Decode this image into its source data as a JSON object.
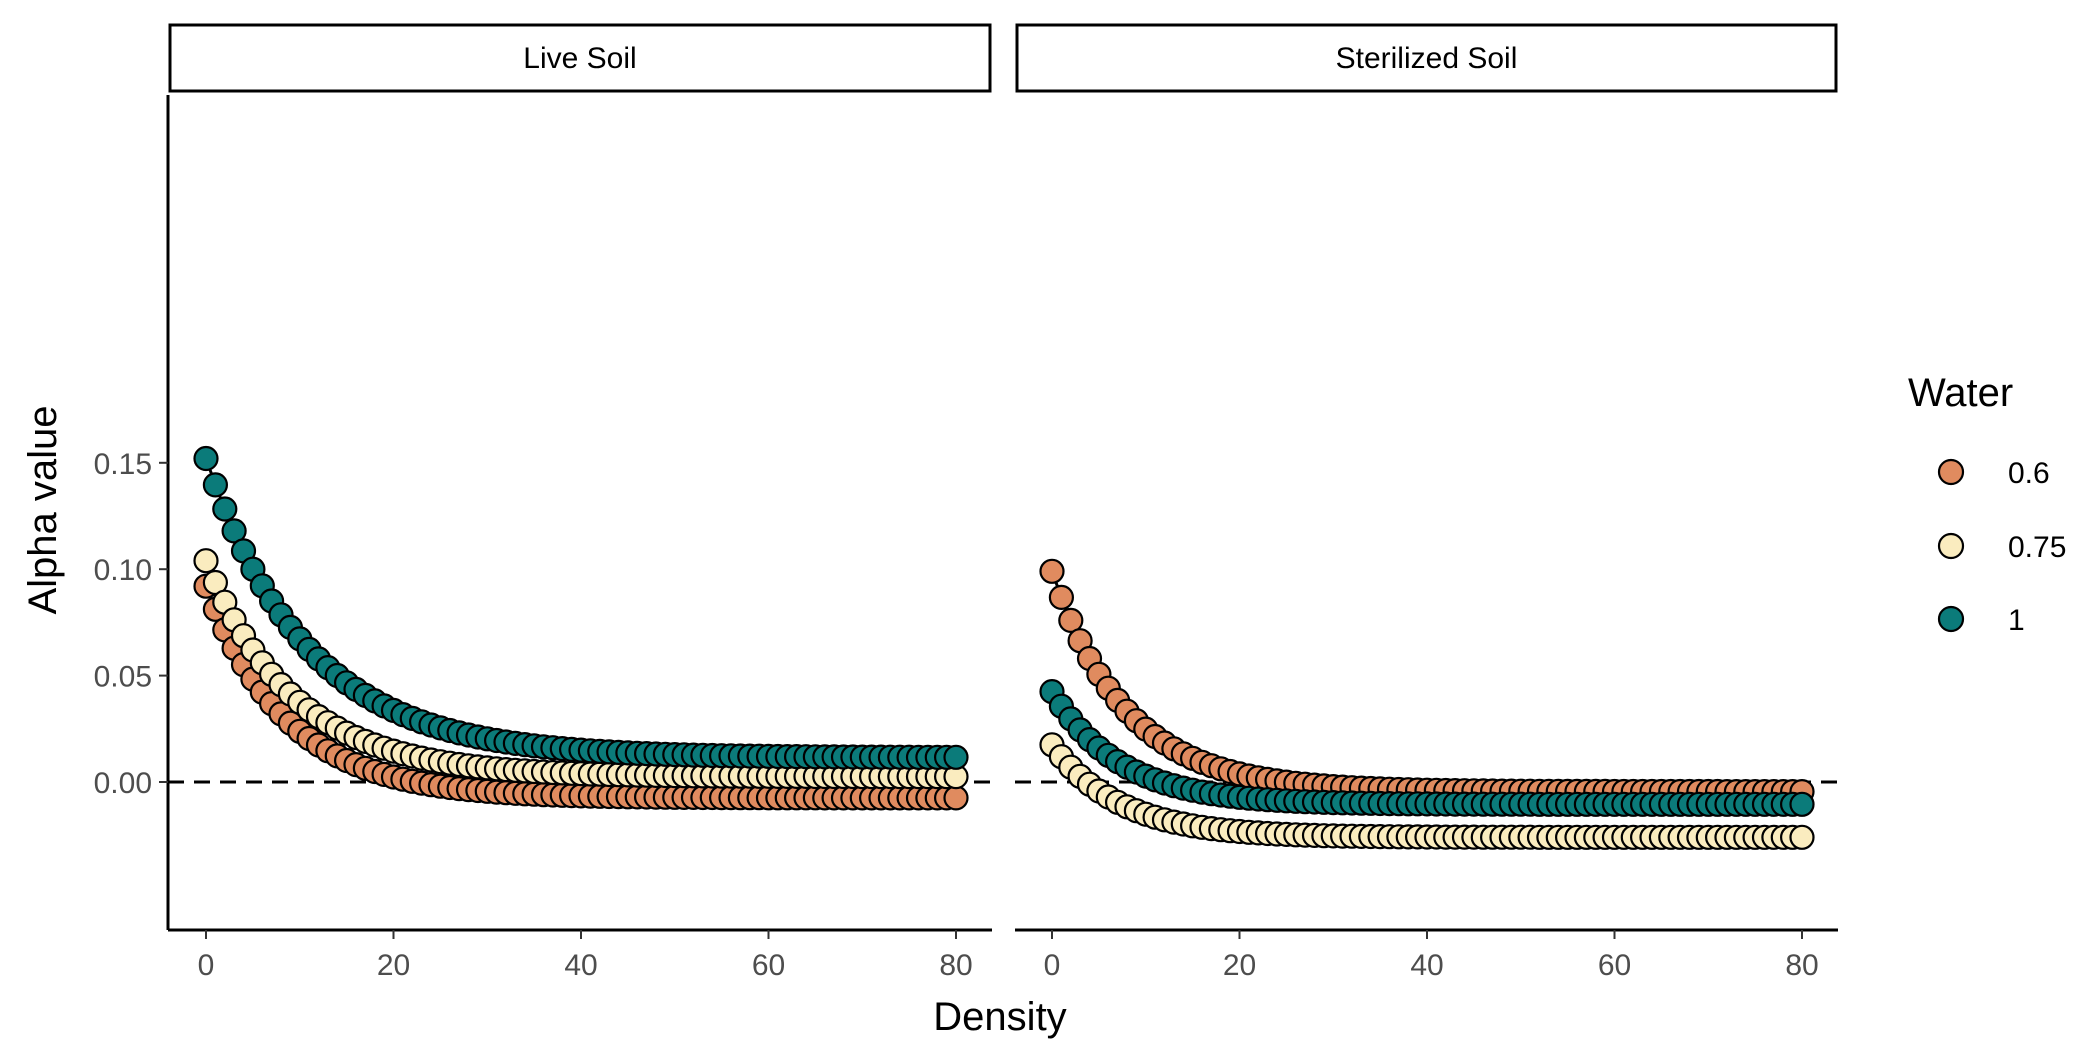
{
  "chart_data": {
    "type": "scatter",
    "xlabel": "Density",
    "ylabel": "Alpha value",
    "xlim": [
      -4,
      84
    ],
    "ylim": [
      -0.035,
      0.162
    ],
    "x_ticks": [
      0,
      20,
      40,
      60,
      80
    ],
    "y_ticks": [
      -0.05,
      0.0,
      0.05,
      0.1,
      0.15
    ],
    "y_tick_labels": [
      "",
      "0.00",
      "0.05",
      "0.10",
      "0.15"
    ],
    "reference_line": {
      "y": 0,
      "style": "dashed"
    },
    "grid": false,
    "legend": {
      "title": "Water",
      "placement": "right",
      "entries": [
        "0.6",
        "0.75",
        "1"
      ]
    },
    "colors": {
      "0.6": "#e08b5f",
      "0.75": "#faecbf",
      "1": "#0b7b7a"
    },
    "x_values": [
      0,
      1,
      2,
      3,
      4,
      5,
      6,
      7,
      8,
      9,
      10,
      11,
      12,
      13,
      14,
      15,
      16,
      17,
      18,
      19,
      20,
      21,
      22,
      23,
      24,
      25,
      26,
      27,
      28,
      29,
      30,
      31,
      32,
      33,
      34,
      35,
      36,
      37,
      38,
      39,
      40,
      41,
      42,
      43,
      44,
      45,
      46,
      47,
      48,
      49,
      50,
      51,
      52,
      53,
      54,
      55,
      56,
      57,
      58,
      59,
      60,
      61,
      62,
      63,
      64,
      65,
      66,
      67,
      68,
      69,
      70,
      71,
      72,
      73,
      74,
      75,
      76,
      77,
      78,
      79,
      80
    ],
    "panels": [
      {
        "label": "Live Soil",
        "series": [
          {
            "name": "0.6",
            "start": 0.092,
            "plateau": -0.0075,
            "half_density": 6.0
          },
          {
            "name": "0.75",
            "start": 0.104,
            "plateau": 0.0025,
            "half_density": 6.5
          },
          {
            "name": "1",
            "start": 0.152,
            "plateau": 0.0115,
            "half_density": 7.5
          }
        ]
      },
      {
        "label": "Sterilized Soil",
        "series": [
          {
            "name": "0.6",
            "start": 0.099,
            "plateau": -0.0045,
            "half_density": 5.5
          },
          {
            "name": "0.75",
            "start": 0.0175,
            "plateau": -0.026,
            "half_density": 5.0
          },
          {
            "name": "1",
            "start": 0.0425,
            "plateau": -0.0105,
            "half_density": 5.0
          }
        ]
      }
    ]
  }
}
